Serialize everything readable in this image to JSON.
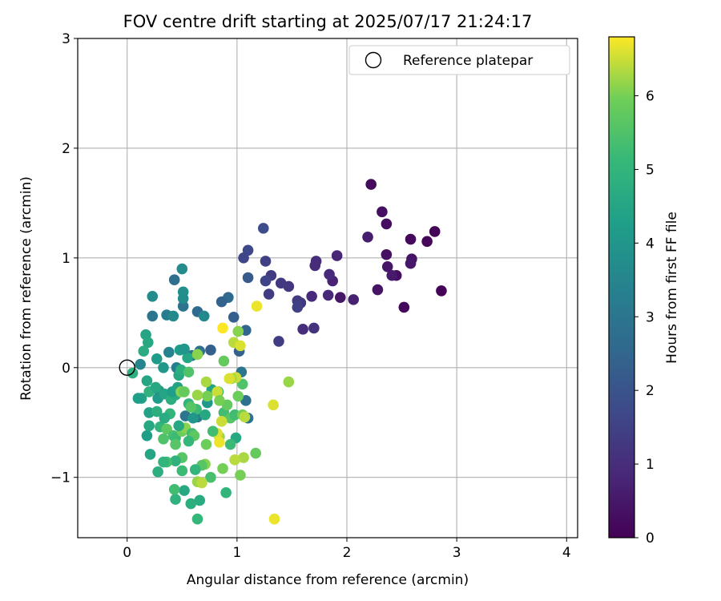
{
  "chart_data": {
    "type": "scatter",
    "title": "FOV centre drift starting at 2025/07/17 21:24:17",
    "xlabel": "Angular distance from reference (arcmin)",
    "ylabel": "Rotation from reference (arcmin)",
    "xlim": [
      -0.45,
      4.1
    ],
    "ylim": [
      -1.55,
      3.0
    ],
    "xticks": [
      0,
      1,
      2,
      3,
      4
    ],
    "yticks": [
      -1,
      0,
      1,
      2,
      3
    ],
    "xtick_labels": [
      "0",
      "1",
      "2",
      "3",
      "4"
    ],
    "ytick_labels": [
      "−1",
      "0",
      "1",
      "2",
      "3"
    ],
    "grid": true,
    "legend": {
      "label": "Reference platepar",
      "location": "top-right",
      "marker": "open-circle"
    },
    "reference_point": {
      "x": 0,
      "y": 0
    },
    "colorbar": {
      "label": "Hours from first FF file",
      "range": [
        0,
        6.8
      ],
      "ticks": [
        0,
        1,
        2,
        3,
        4,
        5,
        6
      ],
      "tick_labels": [
        "0",
        "1",
        "2",
        "3",
        "4",
        "5",
        "6"
      ],
      "colormap": "viridis"
    },
    "points": [
      {
        "x": 2.86,
        "y": 0.7,
        "t": 0.05
      },
      {
        "x": 2.8,
        "y": 1.24,
        "t": 0.08
      },
      {
        "x": 2.73,
        "y": 1.15,
        "t": 0.12
      },
      {
        "x": 2.58,
        "y": 1.17,
        "t": 0.15
      },
      {
        "x": 2.52,
        "y": 0.55,
        "t": 0.18
      },
      {
        "x": 2.59,
        "y": 0.99,
        "t": 0.42
      },
      {
        "x": 2.58,
        "y": 0.95,
        "t": 0.5
      },
      {
        "x": 2.45,
        "y": 0.84,
        "t": 0.25
      },
      {
        "x": 2.41,
        "y": 0.84,
        "t": 0.55
      },
      {
        "x": 2.37,
        "y": 0.92,
        "t": 0.45
      },
      {
        "x": 2.36,
        "y": 1.03,
        "t": 0.35
      },
      {
        "x": 2.36,
        "y": 1.31,
        "t": 0.3
      },
      {
        "x": 2.32,
        "y": 1.42,
        "t": 0.3
      },
      {
        "x": 2.22,
        "y": 1.67,
        "t": 0.22
      },
      {
        "x": 2.28,
        "y": 0.71,
        "t": 0.4
      },
      {
        "x": 2.19,
        "y": 1.19,
        "t": 0.6
      },
      {
        "x": 2.06,
        "y": 0.62,
        "t": 0.7
      },
      {
        "x": 1.94,
        "y": 0.64,
        "t": 0.45
      },
      {
        "x": 1.91,
        "y": 1.02,
        "t": 0.8
      },
      {
        "x": 1.87,
        "y": 0.79,
        "t": 0.75
      },
      {
        "x": 1.84,
        "y": 0.85,
        "t": 0.9
      },
      {
        "x": 1.83,
        "y": 0.66,
        "t": 0.85
      },
      {
        "x": 1.72,
        "y": 0.97,
        "t": 1.0
      },
      {
        "x": 1.71,
        "y": 0.93,
        "t": 0.95
      },
      {
        "x": 1.7,
        "y": 0.36,
        "t": 1.1
      },
      {
        "x": 1.68,
        "y": 0.65,
        "t": 0.9
      },
      {
        "x": 1.6,
        "y": 0.35,
        "t": 1.0
      },
      {
        "x": 1.58,
        "y": 0.59,
        "t": 1.2
      },
      {
        "x": 1.55,
        "y": 0.61,
        "t": 1.4
      },
      {
        "x": 1.55,
        "y": 0.55,
        "t": 1.5
      },
      {
        "x": 1.47,
        "y": 0.74,
        "t": 1.2
      },
      {
        "x": 1.4,
        "y": 0.77,
        "t": 1.3
      },
      {
        "x": 1.38,
        "y": 0.24,
        "t": 1.4
      },
      {
        "x": 1.31,
        "y": 0.84,
        "t": 1.35
      },
      {
        "x": 1.29,
        "y": 0.67,
        "t": 1.4
      },
      {
        "x": 1.26,
        "y": 0.97,
        "t": 1.5
      },
      {
        "x": 1.26,
        "y": 0.79,
        "t": 1.6
      },
      {
        "x": 1.24,
        "y": 1.27,
        "t": 1.8
      },
      {
        "x": 1.1,
        "y": 1.07,
        "t": 1.7
      },
      {
        "x": 1.06,
        "y": 1.0,
        "t": 1.65
      },
      {
        "x": 1.1,
        "y": 0.82,
        "t": 2.2
      },
      {
        "x": 1.08,
        "y": 0.34,
        "t": 2.5
      },
      {
        "x": 1.02,
        "y": 0.15,
        "t": 2.4
      },
      {
        "x": 0.97,
        "y": 0.46,
        "t": 2.3
      },
      {
        "x": 0.92,
        "y": 0.64,
        "t": 2.6
      },
      {
        "x": 0.86,
        "y": 0.6,
        "t": 2.4
      },
      {
        "x": 0.76,
        "y": 0.16,
        "t": 2.3
      },
      {
        "x": 0.64,
        "y": 0.51,
        "t": 2.6
      },
      {
        "x": 0.7,
        "y": 0.47,
        "t": 3.6
      },
      {
        "x": 0.66,
        "y": 0.15,
        "t": 2.8
      },
      {
        "x": 0.59,
        "y": 0.11,
        "t": 2.9
      },
      {
        "x": 0.51,
        "y": 0.56,
        "t": 2.9
      },
      {
        "x": 0.43,
        "y": 0.8,
        "t": 2.8
      },
      {
        "x": 0.36,
        "y": 0.48,
        "t": 3.2
      },
      {
        "x": 0.42,
        "y": 0.47,
        "t": 3.6
      },
      {
        "x": 0.51,
        "y": 0.63,
        "t": 3.7
      },
      {
        "x": 0.5,
        "y": 0.9,
        "t": 3.7
      },
      {
        "x": 0.51,
        "y": 0.69,
        "t": 3.8
      },
      {
        "x": 0.23,
        "y": 0.65,
        "t": 3.7
      },
      {
        "x": 0.23,
        "y": 0.47,
        "t": 3.0
      },
      {
        "x": 1.08,
        "y": -0.3,
        "t": 2.8
      },
      {
        "x": 1.1,
        "y": -0.46,
        "t": 2.9
      },
      {
        "x": 1.04,
        "y": -0.04,
        "t": 3.0
      },
      {
        "x": 0.64,
        "y": -0.45,
        "t": 3.2
      },
      {
        "x": 0.53,
        "y": -0.44,
        "t": 3.0
      },
      {
        "x": 0.38,
        "y": 0.14,
        "t": 3.4
      },
      {
        "x": 0.45,
        "y": 0.0,
        "t": 3.3
      },
      {
        "x": 0.12,
        "y": 0.03,
        "t": 3.5
      },
      {
        "x": 0.17,
        "y": 0.3,
        "t": 4.5
      },
      {
        "x": 0.19,
        "y": 0.23,
        "t": 4.6
      },
      {
        "x": 0.15,
        "y": 0.15,
        "t": 4.7
      },
      {
        "x": 0.18,
        "y": -0.12,
        "t": 4.5
      },
      {
        "x": 0.05,
        "y": -0.05,
        "t": 4.8
      },
      {
        "x": 0.13,
        "y": -0.28,
        "t": 4.4
      },
      {
        "x": 0.2,
        "y": -0.22,
        "t": 4.9
      },
      {
        "x": 0.28,
        "y": -0.28,
        "t": 4.2
      },
      {
        "x": 0.29,
        "y": -0.21,
        "t": 4.0
      },
      {
        "x": 0.33,
        "y": 0.0,
        "t": 4.1
      },
      {
        "x": 0.27,
        "y": 0.08,
        "t": 4.2
      },
      {
        "x": 0.26,
        "y": -0.18,
        "t": 4.6
      },
      {
        "x": 0.34,
        "y": -0.24,
        "t": 4.5
      },
      {
        "x": 0.4,
        "y": -0.29,
        "t": 4.8
      },
      {
        "x": 0.44,
        "y": -0.25,
        "t": 4.7
      },
      {
        "x": 0.41,
        "y": -0.22,
        "t": 4.3
      },
      {
        "x": 0.46,
        "y": -0.18,
        "t": 4.4
      },
      {
        "x": 0.47,
        "y": -0.07,
        "t": 4.6
      },
      {
        "x": 0.49,
        "y": -0.02,
        "t": 4.8
      },
      {
        "x": 0.55,
        "y": 0.09,
        "t": 4.5
      },
      {
        "x": 0.48,
        "y": 0.16,
        "t": 4.2
      },
      {
        "x": 0.52,
        "y": 0.17,
        "t": 4.0
      },
      {
        "x": 0.56,
        "y": -0.33,
        "t": 5.0
      },
      {
        "x": 0.63,
        "y": -0.38,
        "t": 5.2
      },
      {
        "x": 0.6,
        "y": -0.46,
        "t": 4.0
      },
      {
        "x": 0.71,
        "y": -0.43,
        "t": 4.6
      },
      {
        "x": 0.73,
        "y": -0.32,
        "t": 4.1
      },
      {
        "x": 0.77,
        "y": -0.2,
        "t": 4.4
      },
      {
        "x": 0.83,
        "y": -0.22,
        "t": 5.2
      },
      {
        "x": 0.88,
        "y": -0.41,
        "t": 5.3
      },
      {
        "x": 0.94,
        "y": -0.46,
        "t": 5.6
      },
      {
        "x": 0.91,
        "y": -0.34,
        "t": 5.8
      },
      {
        "x": 0.86,
        "y": -0.49,
        "t": 6.5
      },
      {
        "x": 0.82,
        "y": -0.22,
        "t": 6.5
      },
      {
        "x": 0.84,
        "y": -0.3,
        "t": 6.0
      },
      {
        "x": 0.99,
        "y": -0.64,
        "t": 4.6
      },
      {
        "x": 0.98,
        "y": -0.43,
        "t": 5.3
      },
      {
        "x": 0.94,
        "y": -0.7,
        "t": 5.2
      },
      {
        "x": 1.01,
        "y": -0.26,
        "t": 5.9
      },
      {
        "x": 1.05,
        "y": -0.15,
        "t": 5.5
      },
      {
        "x": 0.99,
        "y": -0.09,
        "t": 6.5
      },
      {
        "x": 0.95,
        "y": -0.1,
        "t": 6.3
      },
      {
        "x": 1.05,
        "y": -0.43,
        "t": 6.0
      },
      {
        "x": 1.07,
        "y": -0.45,
        "t": 6.4
      },
      {
        "x": 1.06,
        "y": -0.82,
        "t": 6.3
      },
      {
        "x": 1.17,
        "y": -0.78,
        "t": 5.8
      },
      {
        "x": 1.03,
        "y": -0.98,
        "t": 6.0
      },
      {
        "x": 0.98,
        "y": -0.84,
        "t": 6.4
      },
      {
        "x": 0.87,
        "y": -0.92,
        "t": 6.0
      },
      {
        "x": 0.84,
        "y": -0.63,
        "t": 6.2
      },
      {
        "x": 0.82,
        "y": -0.6,
        "t": 6.6
      },
      {
        "x": 0.84,
        "y": -0.68,
        "t": 6.7
      },
      {
        "x": 0.72,
        "y": -0.7,
        "t": 5.9
      },
      {
        "x": 0.71,
        "y": -0.88,
        "t": 6.1
      },
      {
        "x": 0.68,
        "y": -0.89,
        "t": 5.6
      },
      {
        "x": 0.76,
        "y": -1.0,
        "t": 5.4
      },
      {
        "x": 0.64,
        "y": -1.04,
        "t": 6.2
      },
      {
        "x": 0.68,
        "y": -1.05,
        "t": 6.4
      },
      {
        "x": 0.62,
        "y": -0.93,
        "t": 5.0
      },
      {
        "x": 0.66,
        "y": -1.21,
        "t": 4.7
      },
      {
        "x": 0.58,
        "y": -1.24,
        "t": 4.8
      },
      {
        "x": 0.64,
        "y": -1.38,
        "t": 5.1
      },
      {
        "x": 0.52,
        "y": -1.12,
        "t": 4.6
      },
      {
        "x": 0.44,
        "y": -1.2,
        "t": 4.9
      },
      {
        "x": 0.43,
        "y": -1.11,
        "t": 5.3
      },
      {
        "x": 0.5,
        "y": -0.94,
        "t": 5.2
      },
      {
        "x": 0.5,
        "y": -0.82,
        "t": 5.6
      },
      {
        "x": 0.44,
        "y": -0.85,
        "t": 4.9
      },
      {
        "x": 0.36,
        "y": -0.86,
        "t": 5.3
      },
      {
        "x": 0.33,
        "y": -0.86,
        "t": 5.0
      },
      {
        "x": 0.28,
        "y": -0.95,
        "t": 4.8
      },
      {
        "x": 0.21,
        "y": -0.79,
        "t": 4.5
      },
      {
        "x": 0.18,
        "y": -0.62,
        "t": 4.3
      },
      {
        "x": 0.2,
        "y": -0.53,
        "t": 4.6
      },
      {
        "x": 0.2,
        "y": -0.41,
        "t": 4.4
      },
      {
        "x": 0.27,
        "y": -0.4,
        "t": 4.8
      },
      {
        "x": 0.3,
        "y": -0.54,
        "t": 5.0
      },
      {
        "x": 0.33,
        "y": -0.65,
        "t": 5.5
      },
      {
        "x": 0.36,
        "y": -0.56,
        "t": 5.7
      },
      {
        "x": 0.42,
        "y": -0.62,
        "t": 5.4
      },
      {
        "x": 0.44,
        "y": -0.64,
        "t": 5.2
      },
      {
        "x": 0.44,
        "y": -0.7,
        "t": 5.6
      },
      {
        "x": 0.5,
        "y": -0.58,
        "t": 5.9
      },
      {
        "x": 0.53,
        "y": -0.55,
        "t": 6.1
      },
      {
        "x": 0.59,
        "y": -0.6,
        "t": 5.3
      },
      {
        "x": 0.61,
        "y": -0.62,
        "t": 5.7
      },
      {
        "x": 0.56,
        "y": -0.67,
        "t": 5.1
      },
      {
        "x": 0.47,
        "y": -0.53,
        "t": 4.6
      },
      {
        "x": 0.39,
        "y": -0.42,
        "t": 5.0
      },
      {
        "x": 0.34,
        "y": -0.46,
        "t": 4.7
      },
      {
        "x": 0.49,
        "y": -0.22,
        "t": 6.1
      },
      {
        "x": 0.52,
        "y": -0.22,
        "t": 5.8
      },
      {
        "x": 0.56,
        "y": -0.04,
        "t": 5.5
      },
      {
        "x": 0.64,
        "y": 0.12,
        "t": 6.1
      },
      {
        "x": 0.72,
        "y": -0.13,
        "t": 6.3
      },
      {
        "x": 0.73,
        "y": -0.26,
        "t": 6.0
      },
      {
        "x": 0.64,
        "y": -0.25,
        "t": 6.2
      },
      {
        "x": 0.58,
        "y": -0.36,
        "t": 5.6
      },
      {
        "x": 0.87,
        "y": 0.36,
        "t": 6.8
      },
      {
        "x": 0.97,
        "y": 0.23,
        "t": 6.4
      },
      {
        "x": 1.03,
        "y": 0.2,
        "t": 6.6
      },
      {
        "x": 1.01,
        "y": 0.33,
        "t": 6.1
      },
      {
        "x": 0.88,
        "y": 0.06,
        "t": 5.8
      },
      {
        "x": 0.93,
        "y": -0.1,
        "t": 6.6
      },
      {
        "x": 1.18,
        "y": 0.56,
        "t": 6.7
      },
      {
        "x": 1.33,
        "y": -0.34,
        "t": 6.6
      },
      {
        "x": 1.47,
        "y": -0.13,
        "t": 6.2
      },
      {
        "x": 1.34,
        "y": -1.38,
        "t": 6.7
      },
      {
        "x": 0.78,
        "y": -0.58,
        "t": 5.3
      },
      {
        "x": 0.1,
        "y": -0.28,
        "t": 4.3
      },
      {
        "x": 0.9,
        "y": -1.14,
        "t": 5.0
      }
    ]
  }
}
